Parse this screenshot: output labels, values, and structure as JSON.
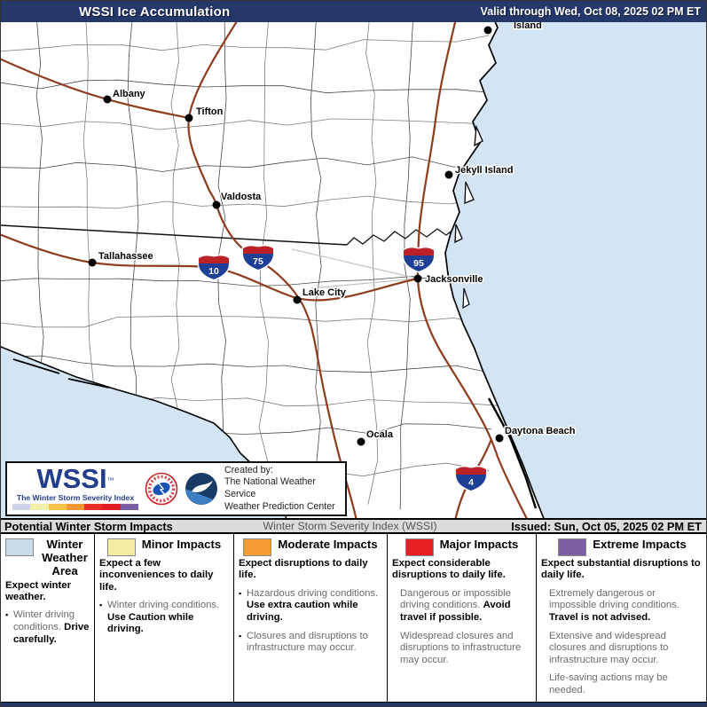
{
  "header": {
    "title": "WSSI Ice Accumulation",
    "valid_through": "Valid through Wed, Oct 08, 2025 02 PM ET"
  },
  "map": {
    "cities": [
      {
        "name": "Albany"
      },
      {
        "name": "Tifton"
      },
      {
        "name": "Valdosta"
      },
      {
        "name": "Jekyll Island"
      },
      {
        "name": "Tallahassee"
      },
      {
        "name": "Lake City"
      },
      {
        "name": "Jacksonville"
      },
      {
        "name": "Ocala"
      },
      {
        "name": "Daytona Beach"
      },
      {
        "name": "Island"
      }
    ],
    "interstate_shields": [
      {
        "route": "10"
      },
      {
        "route": "75"
      },
      {
        "route": "95"
      },
      {
        "route": "4"
      }
    ],
    "colors": {
      "ocean": "#d3e5f5",
      "road": "#8e3c1e",
      "land": "#ffffff"
    }
  },
  "logo_box": {
    "wordmark": "WSSI",
    "trademark": "™",
    "tagline": "The Winter Storm Severity Index",
    "strip_colors": [
      "#cfd5e7",
      "#f2efa6",
      "#f6c44a",
      "#f49536",
      "#ea2d24",
      "#e01b22",
      "#7b5ca6"
    ],
    "created_by": "Created by:",
    "org_line1": "The National Weather Service",
    "org_line2": "Weather Prediction Center"
  },
  "title_bar": {
    "left": "Potential Winter Storm Impacts",
    "center": "Winter Storm Severity Index (WSSI)",
    "right": "Issued: Sun, Oct 05, 2025 02 PM ET"
  },
  "legend": {
    "columns": [
      {
        "title": "Winter Weather Area",
        "swatch": "#ccdbe8",
        "intro": "Expect winter weather.",
        "items": [
          {
            "marker": "▪",
            "plain": "Winter driving conditions.",
            "bold": "Drive carefully."
          }
        ]
      },
      {
        "title": "Minor Impacts",
        "swatch": "#f2eda0",
        "intro": "Expect a few inconveniences to daily life.",
        "items": [
          {
            "marker": "▪",
            "plain": "Winter driving conditions.",
            "bold": "Use Caution while driving."
          }
        ]
      },
      {
        "title": "Moderate Impacts",
        "swatch": "#f59d33",
        "intro": "Expect disruptions to daily life.",
        "items": [
          {
            "marker": "▪",
            "plain": "Hazardous driving conditions.",
            "bold": "Use extra caution while driving."
          },
          {
            "marker": "▪",
            "plain": "Closures and disruptions to infrastructure may occur.",
            "bold": ""
          }
        ]
      },
      {
        "title": "Major Impacts",
        "swatch": "#ea1c24",
        "intro": "Expect considerable disruptions to daily life.",
        "items": [
          {
            "marker": "",
            "plain": "Dangerous or impossible driving conditions.",
            "bold": "Avoid travel if possible."
          },
          {
            "marker": "",
            "plain": "Widespread closures and disruptions to infrastructure may occur.",
            "bold": ""
          }
        ]
      },
      {
        "title": "Extreme Impacts",
        "swatch": "#7c5fa5",
        "intro": "Expect substantial disruptions to daily life.",
        "items": [
          {
            "marker": "",
            "plain": "Extremely dangerous or impossible driving conditions.",
            "bold": "Travel is not advised."
          },
          {
            "marker": "",
            "plain": "Extensive and widespread closures and disruptions to infrastructure may occur.",
            "bold": ""
          },
          {
            "marker": "",
            "plain": "Life-saving actions may be needed.",
            "bold": ""
          }
        ]
      }
    ]
  }
}
